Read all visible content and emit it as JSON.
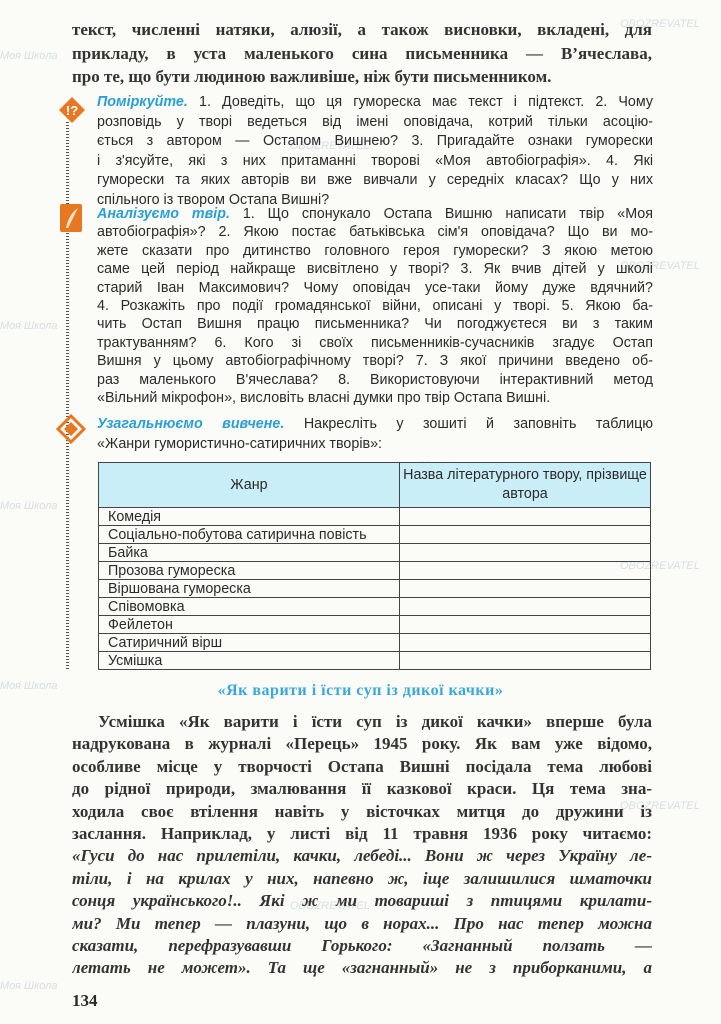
{
  "intro_lines": [
    "текст, численні натяки, алюзії, а також висновки, вкладені, для",
    "прикладу, в уста маленького сина письменника — В’ячеслава,",
    "про те, що бути людиною важливіше, ніж бути письменником."
  ],
  "think": {
    "icon": "question-speech-icon",
    "lead": "Поміркуйте.",
    "lines": [
      " 1. Доведіть, що ця гумореска має текст і підтекст. 2. Чому",
      "розповідь у творі ведеться від імені оповідача, котрий тільки асоцію-",
      "ється з автором — Остапом Вишнею? 3. Пригадайте ознаки гуморески",
      "і з'ясуйте, які з них притаманні творові «Моя автобіографія». 4. Які",
      "гуморески та яких авторів ви вже вивчали у середніх класах? Що у них",
      "спільного із твором Остапа Вишні?"
    ]
  },
  "analyze": {
    "icon": "quill-icon",
    "lead": "Аналізуємо твір.",
    "lines": [
      " 1. Що спонукало Остапа Вишню написати твір «Моя",
      "автобіографія»? 2. Якою постає батьківська сім'я оповідача? Що ви мо-",
      "жете сказати про дитинство головного героя гуморески? З якою метою",
      "саме цей період найкраще висвітлено у творі? 3. Як вчив дітей у школі",
      "старий Іван Максимович? Чому оповідач усе-таки йому дуже вдячний?",
      "4. Розкажіть про події громадянської війни, описані у творі. 5. Якою ба-",
      "чить Остап Вишня працю письменника? Чи погоджуєтеся ви з таким",
      "трактуванням? 6. Кого зі своїх письменників-сучасників згадує Остап",
      "Вишня у цьому автобіографічному творі? 7. З якої причини введено об-",
      "раз маленького В'ячеслава? 8. Використовуючи інтерактивний метод",
      "«Вільний мікрофон», висловіть власні думки про твір Остапа Вишні."
    ]
  },
  "generalize": {
    "icon": "diamond-ornament-icon",
    "lead": "Узагальнюємо вивчене.",
    "lines": [
      " Накресліть у зошиті й заповніть таблицю",
      "«Жанри гумористично-сатиричних творів»:"
    ]
  },
  "table": {
    "header_color": "#c9eef7",
    "columns": [
      "Жанр",
      "Назва літературного твору, прізвище автора"
    ],
    "rows": [
      "Комедія",
      "Соціально-побутова сатирична повість",
      "Байка",
      "Прозова гумореска",
      "Віршована гумореска",
      "Співомовка",
      "Фейлетон",
      "Сатиричний вірш",
      "Усмішка"
    ]
  },
  "section_heading": "«Як варити і їсти суп із дикої качки»",
  "body_lines": [
    "Усмішка «Як варити і їсти суп із дикої качки» вперше була",
    "надрукована в журналі «Перець» 1945 року. Як вам уже відомо,",
    "особливе місце у творчості Остапа Вишні посідала тема любові",
    "до рідної природи, змалювання її казкової краси. Ця тема зна-",
    "ходила своє втілення навіть у вісточках митця до дружини із",
    "заслання. Наприклад, у листі від 11 травня 1936 року читаємо:"
  ],
  "quote_lines": [
    "«Гуси до нас прилетіли, качки, лебеді... Вони ж через Україну ле-",
    "тіли, і на крилах у них, напевно ж, іще залишилися шматочки",
    "сонця українського!.. Які ж ми товариші з птицями крилати-",
    "ми? Ми тепер — плазуни, що в норах... Про нас тепер можна",
    "сказати, перефразувавши Горького: «Загнанный ползать —",
    "летать не может». Та ще «загнанный» не з приборканими, а"
  ],
  "page_number": "134",
  "accent_color": "#2a9fd6",
  "watermark": [
    "Моя Школа",
    "OBOZREVATEL"
  ]
}
